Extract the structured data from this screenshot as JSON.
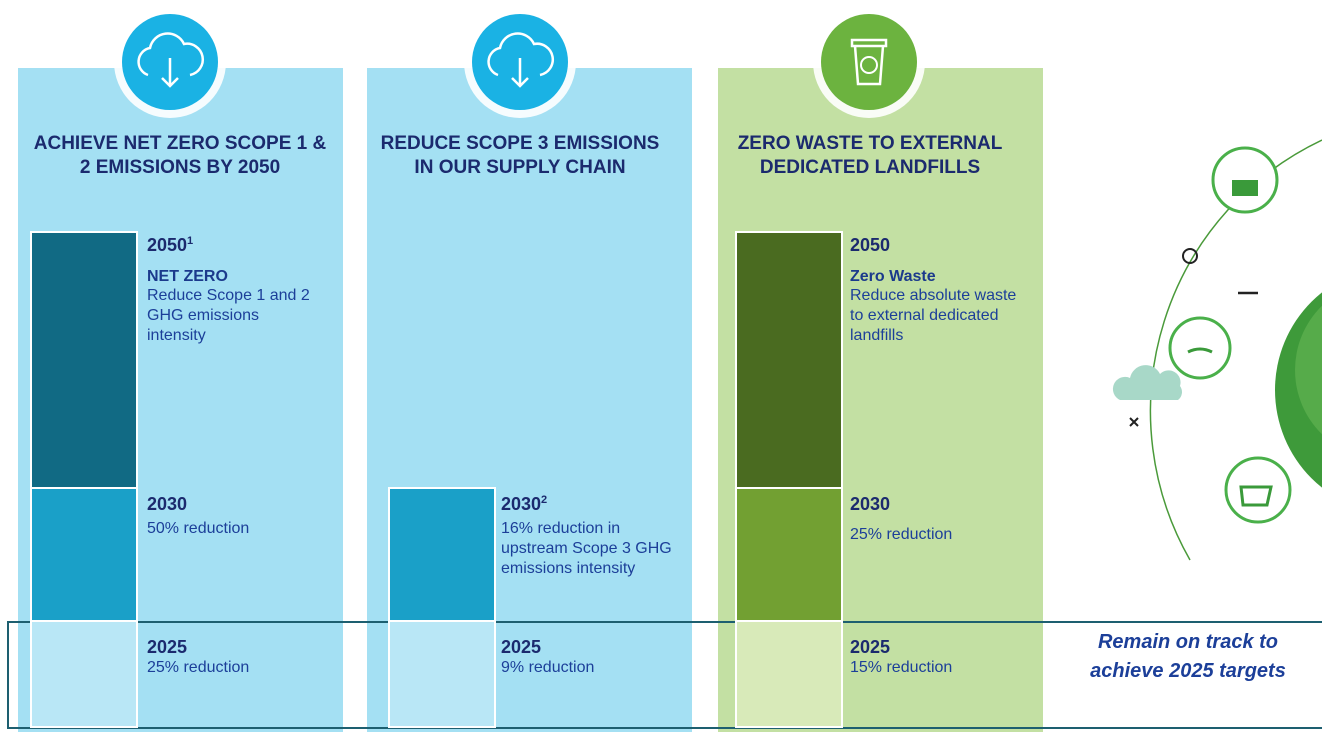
{
  "columns": [
    {
      "title": "ACHIEVE NET ZERO SCOPE 1 & 2 EMISSIONS BY 2050",
      "targets": [
        {
          "year": "2050",
          "note": "1",
          "heading": "NET ZERO",
          "text": "Reduce Scope 1 and 2 GHG emissions intensity"
        },
        {
          "year": "2030",
          "text": "50% reduction"
        },
        {
          "year": "2025",
          "text": "25% reduction"
        }
      ]
    },
    {
      "title": "REDUCE SCOPE 3 EMISSIONS IN OUR SUPPLY CHAIN",
      "targets": [
        {
          "year": "2030",
          "note": "2",
          "text": "16% reduction in upstream Scope 3 GHG emissions intensity"
        },
        {
          "year": "2025",
          "text": "9% reduction"
        }
      ]
    },
    {
      "title": "ZERO WASTE TO EXTERNAL DEDICATED LANDFILLS",
      "targets": [
        {
          "year": "2050",
          "heading": "Zero Waste",
          "text": "Reduce absolute waste to external dedicated landfills"
        },
        {
          "year": "2030",
          "text": "25% reduction"
        },
        {
          "year": "2025",
          "text": "15% reduction"
        }
      ]
    }
  ],
  "callout": "Remain on track to achieve 2025 targets"
}
